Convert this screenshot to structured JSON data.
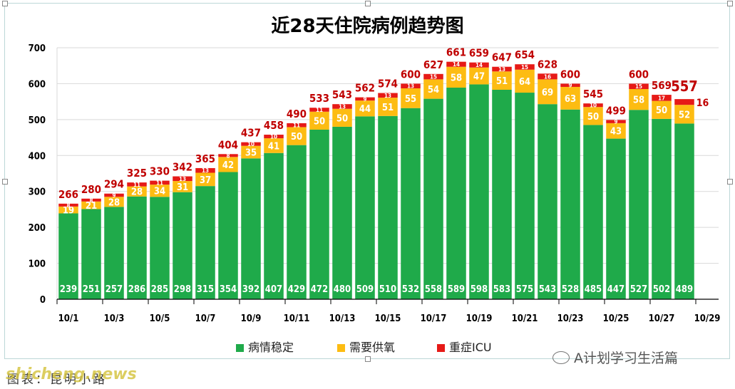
{
  "chart_data": {
    "type": "bar",
    "stacked": true,
    "title": "近28天住院病例趋势图",
    "ylim": [
      0,
      700
    ],
    "yticks": [
      0,
      100,
      200,
      300,
      400,
      500,
      600,
      700
    ],
    "x_tick_labels": [
      "10/1",
      "10/3",
      "10/5",
      "10/7",
      "10/9",
      "10/11",
      "10/13",
      "10/15",
      "10/17",
      "10/19",
      "10/21",
      "10/23",
      "10/25",
      "10/27",
      "10/29"
    ],
    "categories": [
      "10/1",
      "10/2",
      "10/3",
      "10/4",
      "10/5",
      "10/6",
      "10/7",
      "10/8",
      "10/9",
      "10/10",
      "10/11",
      "10/12",
      "10/13",
      "10/14",
      "10/15",
      "10/16",
      "10/17",
      "10/18",
      "10/19",
      "10/20",
      "10/21",
      "10/22",
      "10/23",
      "10/24",
      "10/25",
      "10/26",
      "10/27",
      "10/28"
    ],
    "series": [
      {
        "name": "病情稳定",
        "color": "#1faa4a",
        "values": [
          239,
          251,
          257,
          286,
          285,
          298,
          315,
          354,
          392,
          407,
          429,
          472,
          480,
          509,
          510,
          532,
          558,
          589,
          598,
          583,
          575,
          543,
          528,
          485,
          447,
          527,
          502,
          489
        ]
      },
      {
        "name": "需要供氧",
        "color": "#fdbc12",
        "values": [
          19,
          21,
          28,
          28,
          34,
          31,
          37,
          42,
          35,
          41,
          50,
          50,
          50,
          44,
          51,
          55,
          54,
          58,
          47,
          51,
          64,
          69,
          63,
          50,
          43,
          58,
          50,
          52
        ]
      },
      {
        "name": "重症ICU",
        "color": "#e61a17",
        "values": [
          8,
          8,
          9,
          11,
          11,
          13,
          13,
          8,
          10,
          10,
          11,
          11,
          13,
          9,
          13,
          13,
          15,
          14,
          14,
          13,
          15,
          16,
          9,
          10,
          9,
          15,
          17,
          16
        ]
      }
    ],
    "totals": [
      266,
      280,
      294,
      325,
      330,
      342,
      365,
      404,
      437,
      458,
      490,
      533,
      543,
      562,
      574,
      600,
      627,
      661,
      659,
      647,
      654,
      628,
      600,
      545,
      499,
      600,
      569,
      557
    ],
    "grid": true,
    "legend_position": "bottom"
  },
  "footer": {
    "wechat_label": "A计划学习生活篇",
    "source_label": "图表：昆明小路",
    "watermark": "shicheng.news"
  }
}
